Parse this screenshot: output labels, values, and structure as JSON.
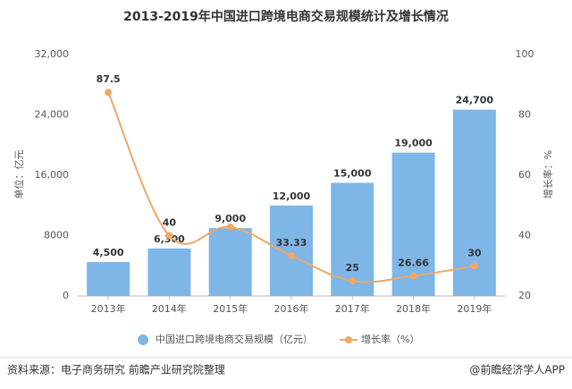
{
  "chart_data": {
    "type": "bar-line",
    "title": "2013-2019年中国进口跨境电商交易规模统计及增长情况",
    "y_label": "单位：亿元",
    "y2_label": "增长率：%",
    "categories": [
      "2013年",
      "2014年",
      "2015年",
      "2016年",
      "2017年",
      "2018年",
      "2019年"
    ],
    "series": [
      {
        "name": "中国进口跨境电商交易规模（亿元）",
        "type": "bar",
        "color": "#7eb6e8",
        "values": [
          4500,
          6300,
          9000,
          12000,
          15000,
          19000,
          24700
        ],
        "value_labels": [
          "4,500",
          "6,300",
          "9,000",
          "12,000",
          "15,000",
          "19,000",
          "24,700"
        ]
      },
      {
        "name": "增长率（%）",
        "type": "line",
        "axis": "y2",
        "color": "#f0a765",
        "values": [
          87.5,
          40,
          42.86,
          33.33,
          25,
          26.66,
          30
        ],
        "value_labels": [
          "87.5",
          "40",
          null,
          "33.33",
          "25",
          "26.66",
          "30"
        ]
      }
    ],
    "ylim": [
      0,
      32000
    ],
    "yticks": [
      0,
      8000,
      {
        "value": 16000,
        "label": "16,000"
      },
      {
        "value": 24000,
        "label": "24,000"
      },
      {
        "value": 32000,
        "label": "32,000"
      }
    ],
    "y2lim": [
      20,
      100
    ],
    "y2ticks": [
      20,
      40,
      60,
      80,
      100
    ],
    "source": "资料来源：电子商务研究 前瞻产业研究院整理",
    "credit": "@前瞻经济学人APP"
  }
}
